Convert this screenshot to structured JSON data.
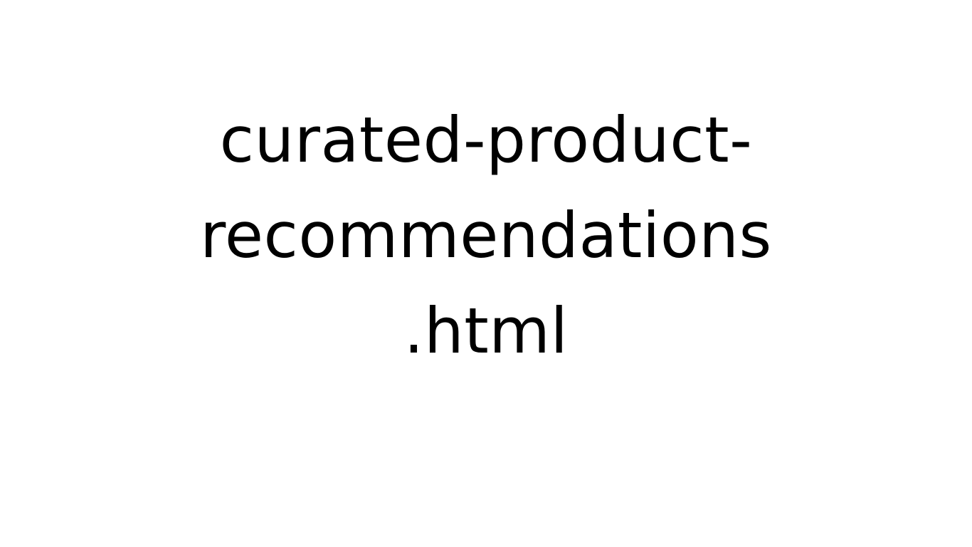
{
  "document": {
    "filename_lines": [
      "curated-product-",
      "recommendations",
      ".html"
    ],
    "text_color": "#000000",
    "background_color": "#ffffff"
  }
}
